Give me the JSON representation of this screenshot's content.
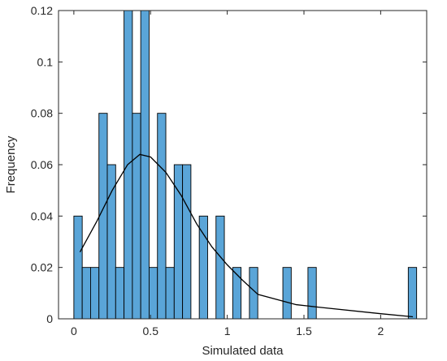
{
  "chart_data": {
    "type": "bar",
    "title": "",
    "xlabel": "Simulated data",
    "ylabel": "Frequency",
    "xlim": [
      -0.1,
      2.3
    ],
    "ylim": [
      0,
      0.12
    ],
    "x_ticks": [
      0,
      0.5,
      1,
      1.5,
      2
    ],
    "x_tick_labels": [
      "0",
      "0.5",
      "1",
      "1.5",
      "2"
    ],
    "y_ticks": [
      0,
      0.02,
      0.04,
      0.06,
      0.08,
      0.1,
      0.12
    ],
    "y_tick_labels": [
      "0",
      "0.02",
      "0.04",
      "0.06",
      "0.08",
      "0.1",
      "0.12"
    ],
    "grid": false,
    "bin_width": 0.0545,
    "bins": [
      {
        "x0": 0.0,
        "value": 0.04
      },
      {
        "x0": 0.0545,
        "value": 0.02
      },
      {
        "x0": 0.109,
        "value": 0.02
      },
      {
        "x0": 0.1635,
        "value": 0.08
      },
      {
        "x0": 0.218,
        "value": 0.06
      },
      {
        "x0": 0.2725,
        "value": 0.02
      },
      {
        "x0": 0.327,
        "value": 0.12
      },
      {
        "x0": 0.3815,
        "value": 0.08
      },
      {
        "x0": 0.436,
        "value": 0.12
      },
      {
        "x0": 0.4905,
        "value": 0.02
      },
      {
        "x0": 0.545,
        "value": 0.08
      },
      {
        "x0": 0.5995,
        "value": 0.02
      },
      {
        "x0": 0.654,
        "value": 0.06
      },
      {
        "x0": 0.7085,
        "value": 0.06
      },
      {
        "x0": 0.763,
        "value": 0.0
      },
      {
        "x0": 0.8175,
        "value": 0.04
      },
      {
        "x0": 0.872,
        "value": 0.0
      },
      {
        "x0": 0.9265,
        "value": 0.04
      },
      {
        "x0": 0.981,
        "value": 0.0
      },
      {
        "x0": 1.0355,
        "value": 0.02
      },
      {
        "x0": 1.09,
        "value": 0.0
      },
      {
        "x0": 1.1445,
        "value": 0.02
      },
      {
        "x0": 1.199,
        "value": 0.0
      },
      {
        "x0": 1.2535,
        "value": 0.0
      },
      {
        "x0": 1.308,
        "value": 0.0
      },
      {
        "x0": 1.3625,
        "value": 0.02
      },
      {
        "x0": 1.417,
        "value": 0.0
      },
      {
        "x0": 1.4715,
        "value": 0.0
      },
      {
        "x0": 1.526,
        "value": 0.02
      },
      {
        "x0": 1.5805,
        "value": 0.0
      },
      {
        "x0": 1.635,
        "value": 0.0
      },
      {
        "x0": 1.6895,
        "value": 0.0
      },
      {
        "x0": 1.744,
        "value": 0.0
      },
      {
        "x0": 1.7985,
        "value": 0.0
      },
      {
        "x0": 1.853,
        "value": 0.0
      },
      {
        "x0": 1.9075,
        "value": 0.0
      },
      {
        "x0": 1.962,
        "value": 0.0
      },
      {
        "x0": 2.0165,
        "value": 0.0
      },
      {
        "x0": 2.071,
        "value": 0.0
      },
      {
        "x0": 2.1255,
        "value": 0.0
      },
      {
        "x0": 2.18,
        "value": 0.02
      }
    ],
    "curve": {
      "x": [
        0.04,
        0.15,
        0.25,
        0.35,
        0.43,
        0.5,
        0.6,
        0.7,
        0.8,
        0.9,
        1.0,
        1.1,
        1.2,
        1.45,
        1.6,
        2.0,
        2.21
      ],
      "y": [
        0.026,
        0.038,
        0.05,
        0.06,
        0.064,
        0.063,
        0.057,
        0.048,
        0.037,
        0.028,
        0.021,
        0.015,
        0.0095,
        0.0055,
        0.0045,
        0.002,
        0.0008
      ]
    },
    "colors": {
      "bar_fill": "#5aa5d8",
      "bar_stroke": "#000000",
      "curve": "#000000",
      "axes": "#262626"
    }
  }
}
